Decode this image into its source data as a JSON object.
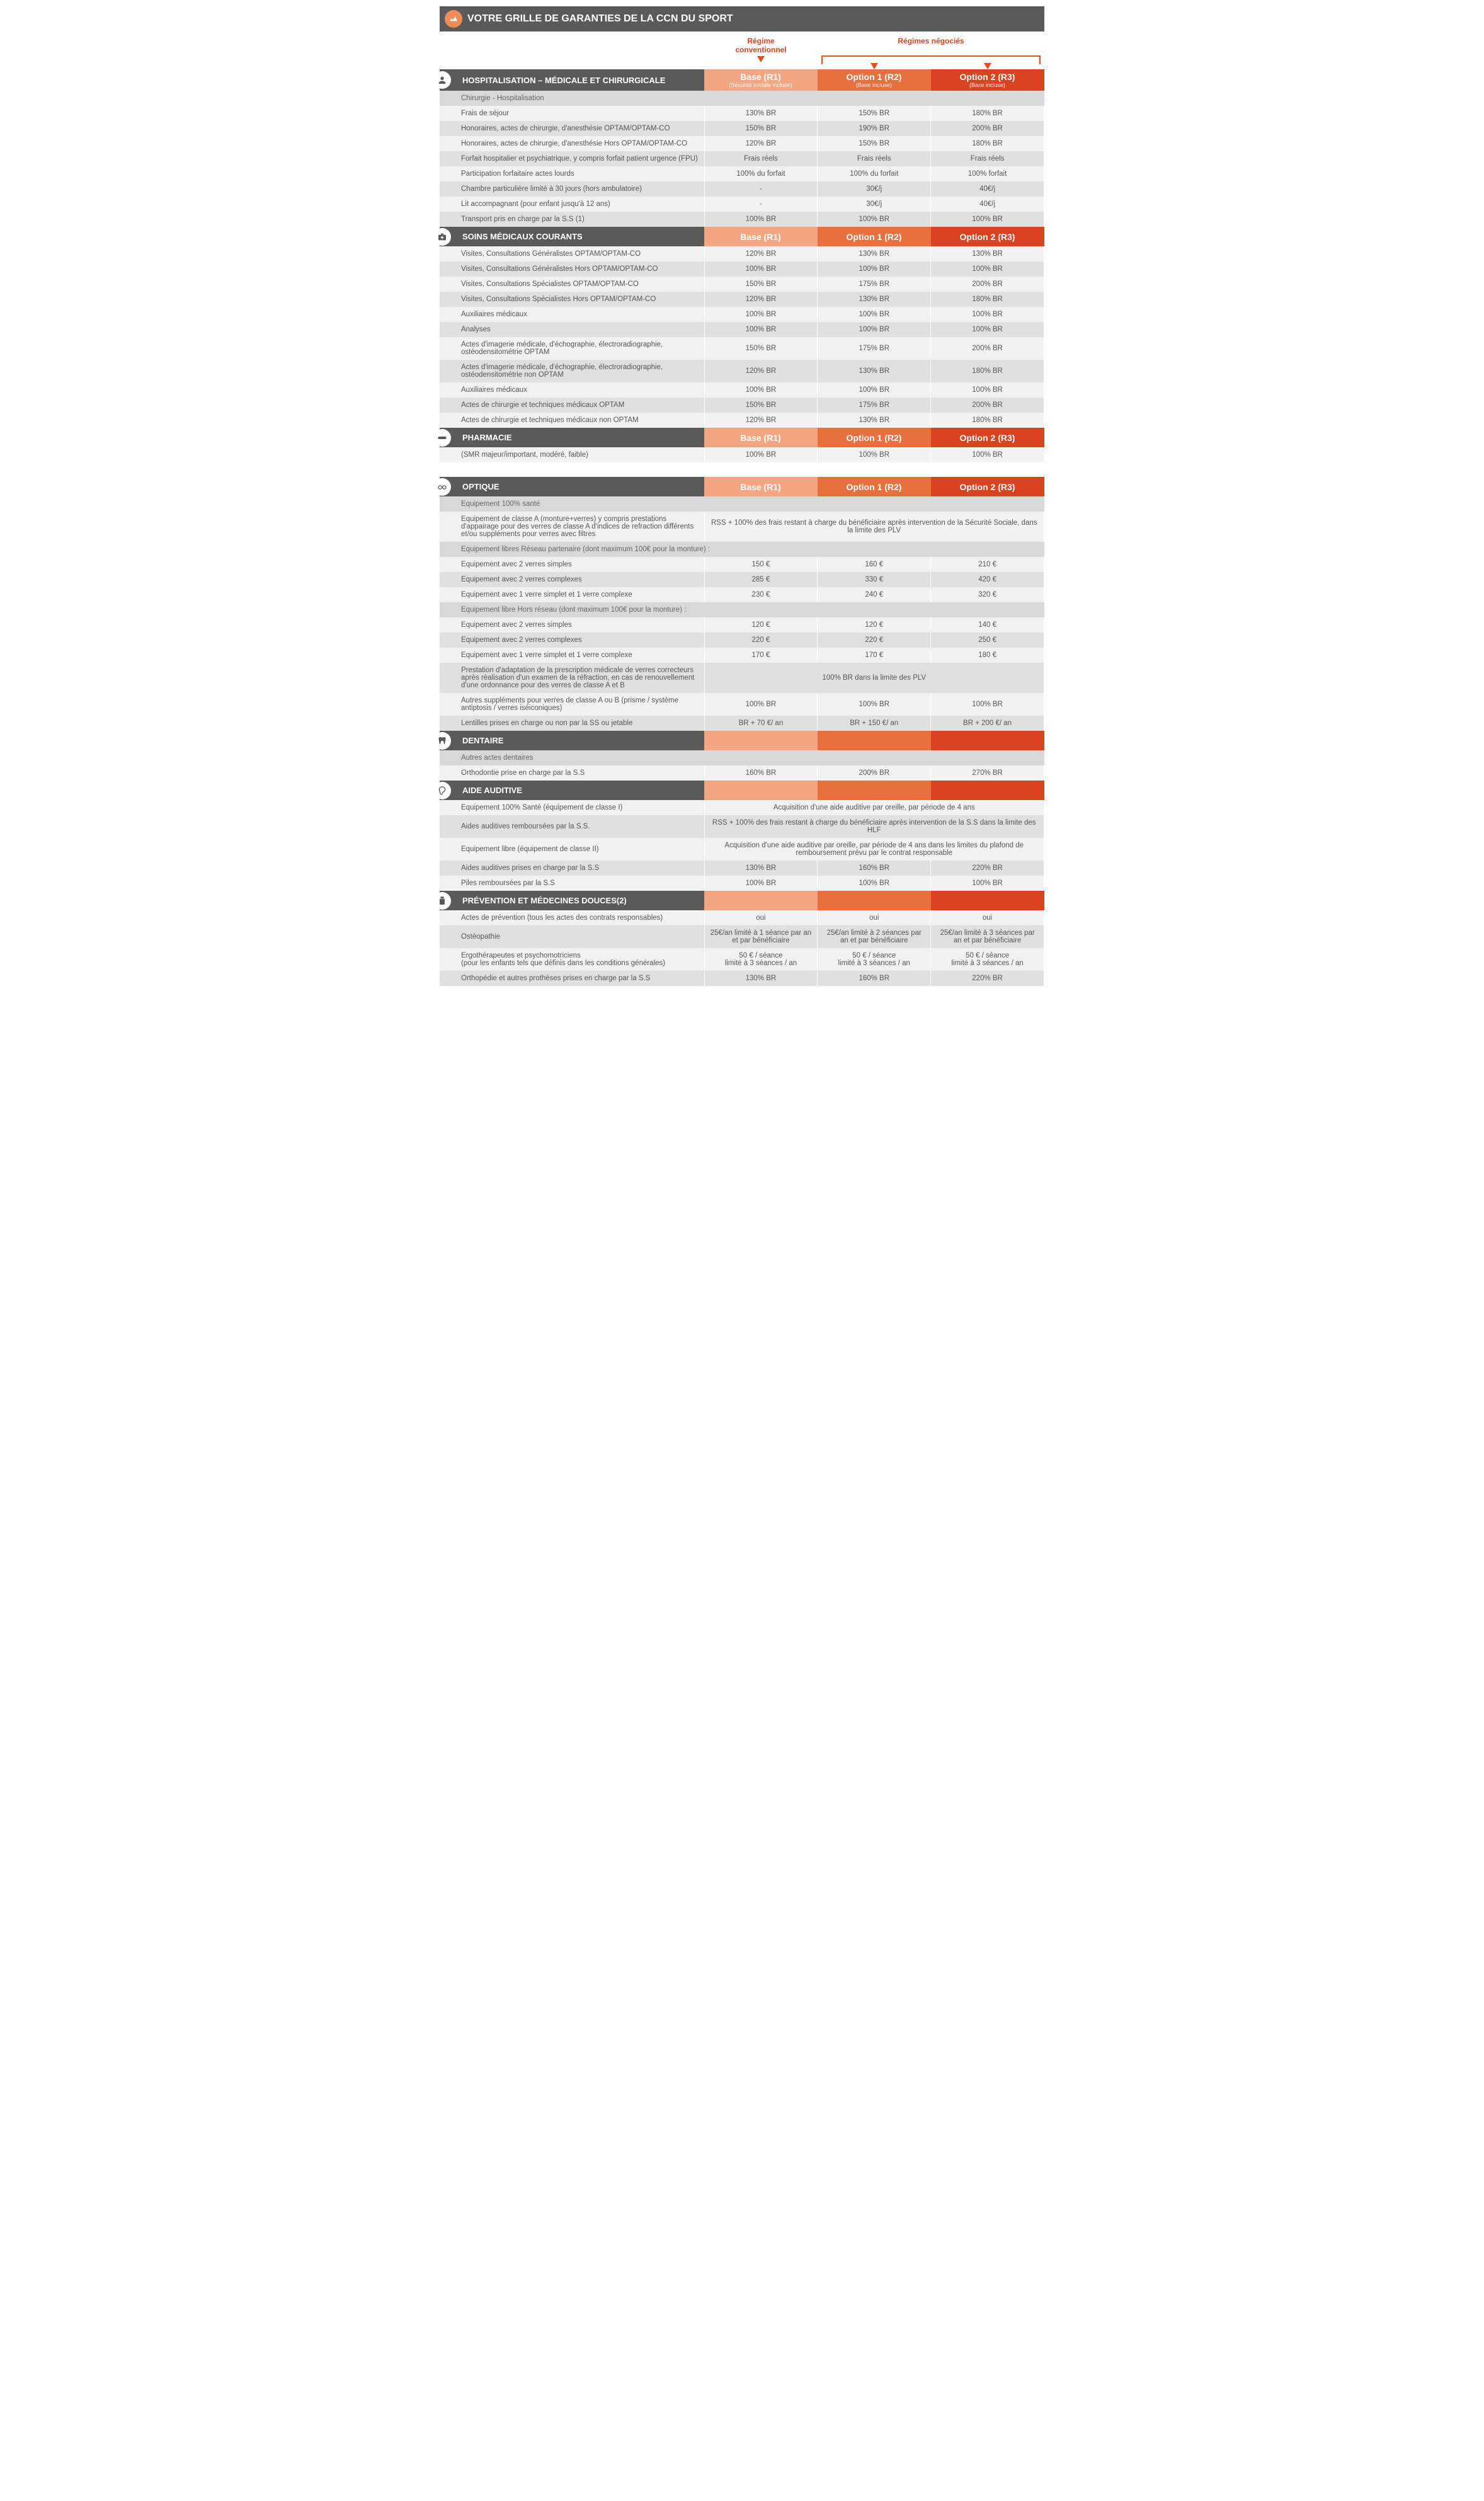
{
  "pageTitle": "VOTRE GRILLE DE GARANTIES DE LA CCN DU SPORT",
  "regimeLabels": {
    "conv": "Régime\nconventionnel",
    "neg": "Régimes\nnégociés"
  },
  "colHeaders": {
    "base": {
      "t": "Base (R1)",
      "s": "(Sécurité sociale incluse)"
    },
    "opt1": {
      "t": "Option 1 (R2)",
      "s": "(Base incluse)"
    },
    "opt2": {
      "t": "Option 2 (R3)",
      "s": "(Base incluse)"
    }
  },
  "colors": {
    "base": "#f4a582",
    "opt1": "#e8703d",
    "opt2": "#d9431f",
    "header": "#5a5a5a"
  },
  "sections": [
    {
      "title": "HOSPITALISATION – MÉDICALE ET CHIRURGICALE",
      "icon": "user",
      "showColSub": true,
      "rows": [
        {
          "type": "sub",
          "label": "Chirurgie - Hospitalisation"
        },
        {
          "label": "Frais de séjour",
          "v": [
            "130% BR",
            "150% BR",
            "180% BR"
          ]
        },
        {
          "label": "Honoraires, actes de chirurgie, d'anesthésie OPTAM/OPTAM-CO",
          "v": [
            "150% BR",
            "190% BR",
            "200% BR"
          ]
        },
        {
          "label": "Honoraires, actes de chirurgie, d'anesthésie Hors OPTAM/OPTAM-CO",
          "v": [
            "120% BR",
            "150% BR",
            "180% BR"
          ]
        },
        {
          "label": "Forfait hospitalier et psychiatrique, y compris forfait patient urgence (FPU)",
          "v": [
            "Frais réels",
            "Frais réels",
            "Frais réels"
          ]
        },
        {
          "label": "Participation forfaitaire actes lourds",
          "v": [
            "100% du forfait",
            "100% du forfait",
            "100% forfait"
          ]
        },
        {
          "label": "Chambre particulière limité à 30 jours (hors ambulatoire)",
          "v": [
            "-",
            "30€/j",
            "40€/j"
          ]
        },
        {
          "label": "Lit accompagnant (pour enfant jusqu'à 12 ans)",
          "v": [
            "-",
            "30€/j",
            "40€/j"
          ]
        },
        {
          "label": "Transport pris en charge par la S.S (1)",
          "v": [
            "100% BR",
            "100% BR",
            "100% BR"
          ]
        }
      ]
    },
    {
      "title": "SOINS MÉDICAUX COURANTS",
      "icon": "kit",
      "rows": [
        {
          "label": "Visites, Consultations Généralistes OPTAM/OPTAM-CO",
          "v": [
            "120% BR",
            "130% BR",
            "130% BR"
          ]
        },
        {
          "label": "Visites, Consultations Généralistes Hors OPTAM/OPTAM-CO",
          "v": [
            "100% BR",
            "100% BR",
            "100% BR"
          ]
        },
        {
          "label": "Visites, Consultations Spécialistes OPTAM/OPTAM-CO",
          "v": [
            "150% BR",
            "175% BR",
            "200% BR"
          ]
        },
        {
          "label": "Visites, Consultations Spécialistes Hors OPTAM/OPTAM-CO",
          "v": [
            "120% BR",
            "130% BR",
            "180% BR"
          ]
        },
        {
          "label": "Auxiliaires médicaux",
          "v": [
            "100% BR",
            "100% BR",
            "100% BR"
          ]
        },
        {
          "label": "Analyses",
          "v": [
            "100% BR",
            "100% BR",
            "100% BR"
          ]
        },
        {
          "label": "Actes d'imagerie médicale, d'échographie, électroradiographie, ostéodensitométrie OPTAM",
          "v": [
            "150% BR",
            "175% BR",
            "200% BR"
          ]
        },
        {
          "label": "Actes d'imagerie médicale, d'échographie, électroradiographie, ostéodensitométrie non OPTAM",
          "v": [
            "120% BR",
            "130% BR",
            "180% BR"
          ]
        },
        {
          "label": "Auxiliaires médicaux",
          "v": [
            "100% BR",
            "100% BR",
            "100% BR"
          ]
        },
        {
          "label": "Actes de chirurgie et techniques médicaux OPTAM",
          "v": [
            "150% BR",
            "175% BR",
            "200% BR"
          ]
        },
        {
          "label": "Actes de chirurgie et techniques médicaux non OPTAM",
          "v": [
            "120% BR",
            "130% BR",
            "180% BR"
          ]
        }
      ]
    },
    {
      "title": "PHARMACIE",
      "icon": "pill",
      "rows": [
        {
          "label": "(SMR majeur/important, modéré, faible)",
          "v": [
            "100% BR",
            "100% BR",
            "100% BR"
          ]
        }
      ]
    },
    {
      "title": "OPTIQUE",
      "icon": "glasses",
      "gap": true,
      "rows": [
        {
          "type": "sub",
          "label": "Equipement 100% santé"
        },
        {
          "label": "Equipement de classe A (monture+verres) y compris prestations d'appairage pour des verres de classe A d'indices de refraction différents et/ou suppléments pour verres avec filtres",
          "merged": "RSS + 100% des frais restant à charge du bénéficiaire après intervention de la Sécurité Sociale, dans la limite des PLV"
        },
        {
          "type": "sub",
          "label": "Equipement libres Réseau partenaire (dont maximum 100€ pour la monture) :"
        },
        {
          "label": "Equipement avec 2 verres simples",
          "v": [
            "150 €",
            "160 €",
            "210 €"
          ]
        },
        {
          "label": "Equipement avec 2 verres complexes",
          "v": [
            "285 €",
            "330 €",
            "420 €"
          ]
        },
        {
          "label": "Equipement avec 1 verre simplet et 1 verre complexe",
          "v": [
            "230 €",
            "240 €",
            "320 €"
          ]
        },
        {
          "type": "sub",
          "label": "Equipement libre Hors réseau (dont maximum 100€ pour la monture) :"
        },
        {
          "label": "Equipement avec 2 verres simples",
          "v": [
            "120 €",
            "120 €",
            "140 €"
          ]
        },
        {
          "label": "Equipement avec 2 verres complexes",
          "v": [
            "220 €",
            "220 €",
            "250 €"
          ]
        },
        {
          "label": "Equipement avec 1 verre simplet et 1 verre complexe",
          "v": [
            "170 €",
            "170 €",
            "180 €"
          ]
        },
        {
          "label": "Prestation d'adaptation de la prescription médicale de verres correcteurs après réalisation d'un examen de la réfraction, en cas de renouvellement d'une ordonnance pour des verres de classe A et B",
          "merged": "100% BR dans la limite des PLV"
        },
        {
          "label": "Autres suppléments pour verres de classe A ou B (prisme / système antiptosis / verres iséiconiques)",
          "v": [
            "100% BR",
            "100% BR",
            "100% BR"
          ]
        },
        {
          "label": "Lentilles prises en charge ou non par la SS ou jetable",
          "v": [
            "BR + 70 €/ an",
            "BR + 150 €/ an",
            "BR + 200 €/ an"
          ]
        }
      ]
    },
    {
      "title": "DENTAIRE",
      "icon": "tooth",
      "emptyHead": true,
      "rows": [
        {
          "type": "sub",
          "label": "Autres actes dentaires"
        },
        {
          "label": "Orthodontie prise en charge par la S.S",
          "v": [
            "160% BR",
            "200% BR",
            "270% BR"
          ]
        }
      ]
    },
    {
      "title": "AIDE AUDITIVE",
      "icon": "ear",
      "emptyHead": true,
      "rows": [
        {
          "label": "Equipement 100% Santé (équipement de classe I)",
          "merged": "Acquisition d'une aide auditive par oreille, par période de 4 ans"
        },
        {
          "label": "Aides auditives remboursées par la S.S.",
          "merged": "RSS + 100% des frais restant à charge du bénéficiaire après intervention de la S.S dans la limite des HLF"
        },
        {
          "label": "Equipement libre (équipement de classe II)",
          "merged": "Acquisition d'une aide auditive par oreille, par période de 4 ans dans les limites  du plafond de remboursement prévu par le contrat responsable"
        },
        {
          "label": "Aides auditives prises en charge par la S.S",
          "v": [
            "130% BR",
            "160% BR",
            "220% BR"
          ]
        },
        {
          "label": "Piles remboursées par la S.S",
          "v": [
            "100% BR",
            "100% BR",
            "100% BR"
          ]
        }
      ]
    },
    {
      "title": "PRÉVENTION ET MÉDECINES DOUCES(2)",
      "icon": "bottle",
      "emptyHead": true,
      "rows": [
        {
          "label": "Actes de prévention (tous les actes des contrats responsables)",
          "v": [
            "oui",
            "oui",
            "oui"
          ]
        },
        {
          "label": "Ostéopathie",
          "v": [
            "25€/an limité à 1 séance par an et par bénéficiaire",
            "25€/an limité à 2 séances par an et par bénéficiaire",
            "25€/an limité à 3 séances par an et par bénéficiaire"
          ]
        },
        {
          "label": "Ergothérapeutes et psychomotriciens\n(pour les enfants tels que définis dans les conditions générales)",
          "v": [
            "50 € / séance\nlimité à 3 séances / an",
            "50 € / séance\nlimité à 3 séances / an",
            "50 € / séance\nlimité à 3 séances / an"
          ]
        },
        {
          "label": "Orthopédie et autres prothèses prises en charge par la S.S",
          "v": [
            "130% BR",
            "160% BR",
            "220% BR"
          ]
        }
      ]
    }
  ]
}
